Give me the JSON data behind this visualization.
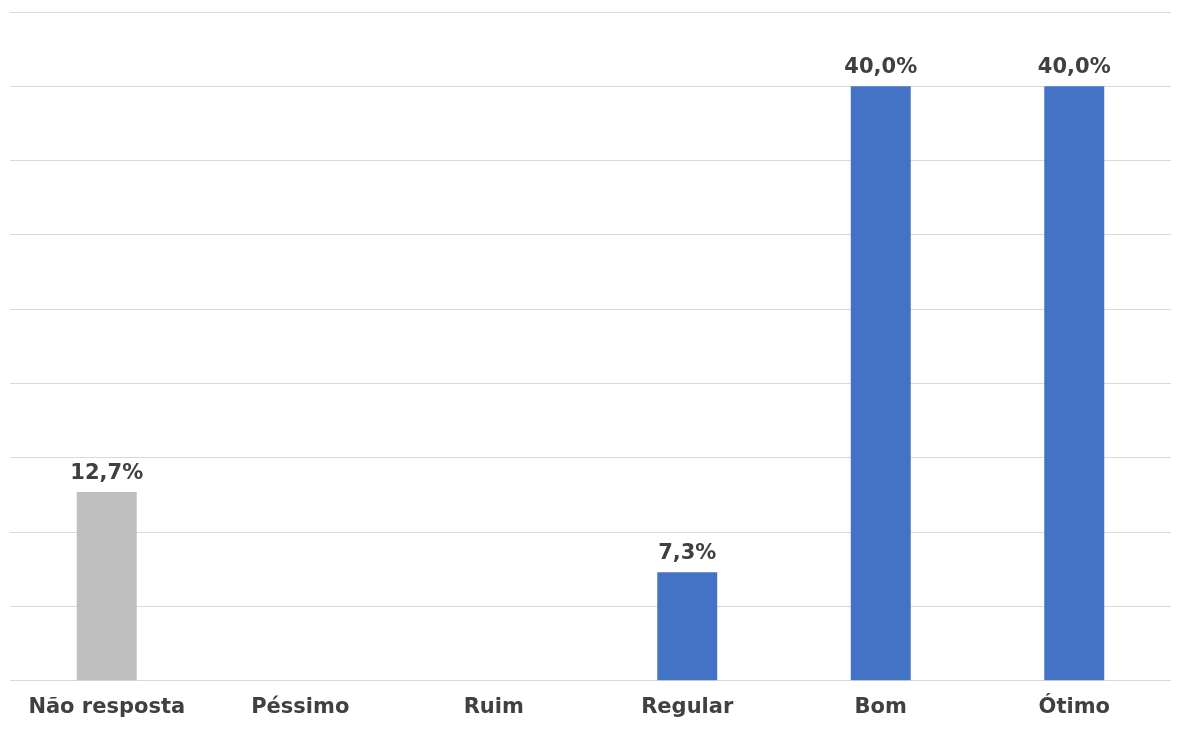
{
  "chart_data": {
    "type": "bar",
    "categories": [
      "Não resposta",
      "Péssimo",
      "Ruim",
      "Regular",
      "Bom",
      "Ótimo"
    ],
    "values": [
      12.7,
      0,
      0,
      7.3,
      40,
      40
    ],
    "colors": [
      "#bfbfbf",
      "#4472c4",
      "#4472c4",
      "#4472c4",
      "#4472c4",
      "#4472c4"
    ],
    "value_labels": [
      "12,7%",
      null,
      null,
      "7,3%",
      "40,0%",
      "40,0%"
    ],
    "ylim": [
      0,
      45
    ],
    "yticks": [
      {
        "value": 0,
        "label": null
      },
      {
        "value": 5,
        "label": null
      },
      {
        "value": 10,
        "label": null
      },
      {
        "value": 15,
        "label": null
      },
      {
        "value": 20,
        "label": null
      },
      {
        "value": 25,
        "label": null
      },
      {
        "value": 30,
        "label": null
      },
      {
        "value": 35,
        "label": null
      },
      {
        "value": 40,
        "label": null
      },
      {
        "value": 45,
        "label": null
      }
    ],
    "grid": "y",
    "tick_labels": "x"
  }
}
